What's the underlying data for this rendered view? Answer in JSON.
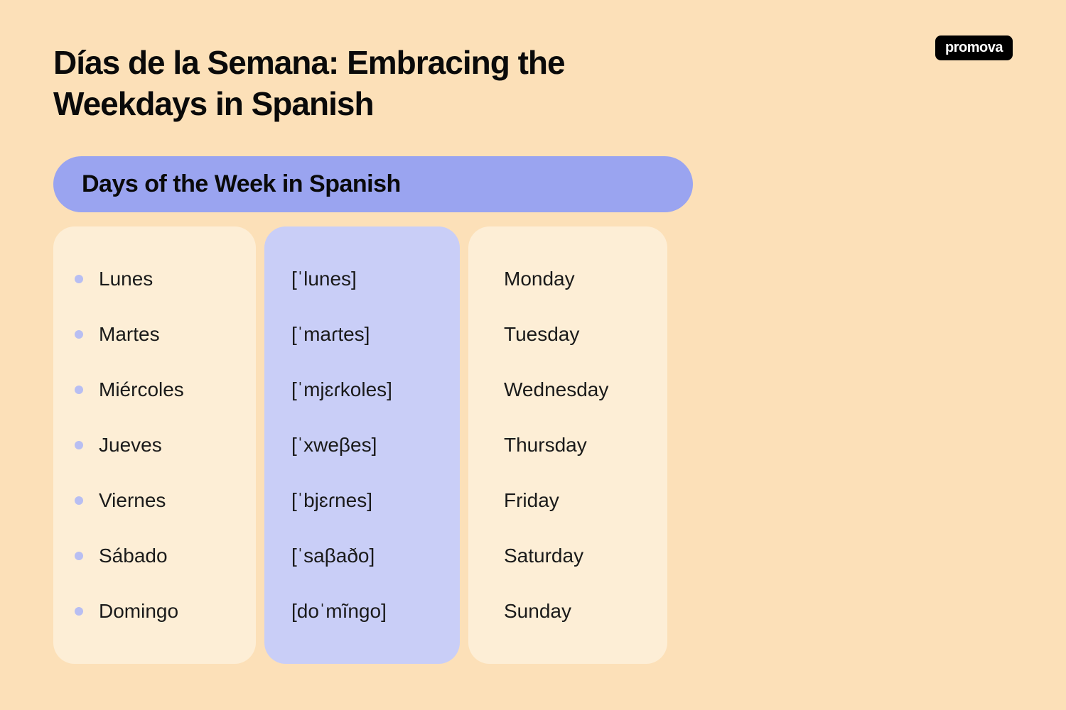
{
  "logo": "promova",
  "title": "Días de la Semana: Embracing the Weekdays in Spanish",
  "subtitle": "Days of the Week in Spanish",
  "colors": {
    "page_bg": "#fce0b8",
    "subtitle_bg": "#9aa4f0",
    "col_outer_bg": "#fdeed6",
    "col_middle_bg": "#c9cef7",
    "bullet": "#b8bef2",
    "text": "#0a0a0a",
    "logo_bg": "#000000",
    "logo_text": "#ffffff"
  },
  "days": [
    {
      "spanish": "Lunes",
      "ipa": "[ˈlunes]",
      "english": "Monday"
    },
    {
      "spanish": "Martes",
      "ipa": "[ˈmaɾtes]",
      "english": "Tuesday"
    },
    {
      "spanish": "Miércoles",
      "ipa": "[ˈmjɛɾkoles]",
      "english": "Wednesday"
    },
    {
      "spanish": "Jueves",
      "ipa": "[ˈxweβes]",
      "english": "Thursday"
    },
    {
      "spanish": "Viernes",
      "ipa": "[ˈbjɛɾnes]",
      "english": "Friday"
    },
    {
      "spanish": "Sábado",
      "ipa": "[ˈsaβaðo]",
      "english": "Saturday"
    },
    {
      "spanish": "Domingo",
      "ipa": "[doˈmĩngo]",
      "english": "Sunday"
    }
  ]
}
